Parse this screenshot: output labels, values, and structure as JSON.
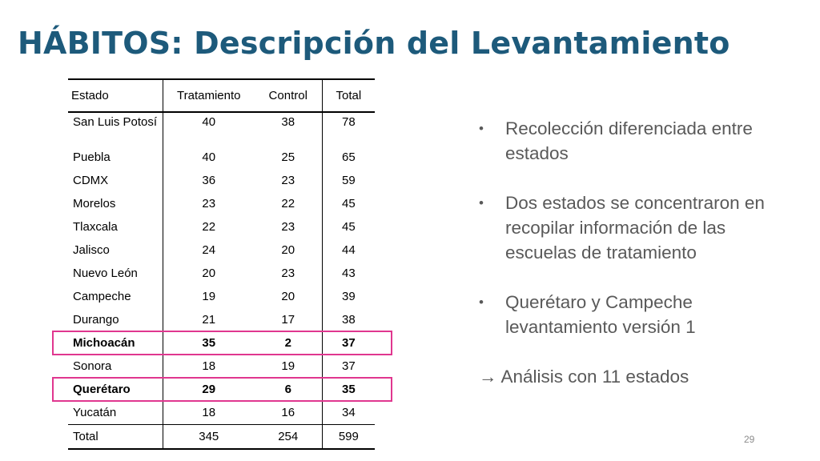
{
  "title": "HÁBITOS: Descripción del Levantamiento",
  "table": {
    "headers": [
      "Estado",
      "Tratamiento",
      "Control",
      "Total"
    ],
    "rows": [
      [
        "San Luis Potosí",
        "40",
        "38",
        "78"
      ],
      [
        "Puebla",
        "40",
        "25",
        "65"
      ],
      [
        "CDMX",
        "36",
        "23",
        "59"
      ],
      [
        "Morelos",
        "23",
        "22",
        "45"
      ],
      [
        "Tlaxcala",
        "22",
        "23",
        "45"
      ],
      [
        "Jalisco",
        "24",
        "20",
        "44"
      ],
      [
        "Nuevo León",
        "20",
        "23",
        "43"
      ],
      [
        "Campeche",
        "19",
        "20",
        "39"
      ],
      [
        "Durango",
        "21",
        "17",
        "38"
      ],
      [
        "Michoacán",
        "35",
        "2",
        "37"
      ],
      [
        "Sonora",
        "18",
        "19",
        "37"
      ],
      [
        "Querétaro",
        "29",
        "6",
        "35"
      ],
      [
        "Yucatán",
        "18",
        "16",
        "34"
      ]
    ],
    "total": [
      "Total",
      "345",
      "254",
      "599"
    ],
    "highlighted_rows": [
      "Michoacán",
      "Querétaro"
    ]
  },
  "bullets": [
    "Recolección diferenciada entre estados",
    "Dos estados se concentraron en recopilar información de las escuelas de tratamiento",
    "Querétaro y Campeche levantamiento versión 1"
  ],
  "conclusion": {
    "arrow": "→",
    "text": "Análisis con 11 estados"
  },
  "page_number": "29",
  "colors": {
    "title": "#1d5a7b",
    "highlight": "#e0378f",
    "bullet_text": "#595959"
  }
}
